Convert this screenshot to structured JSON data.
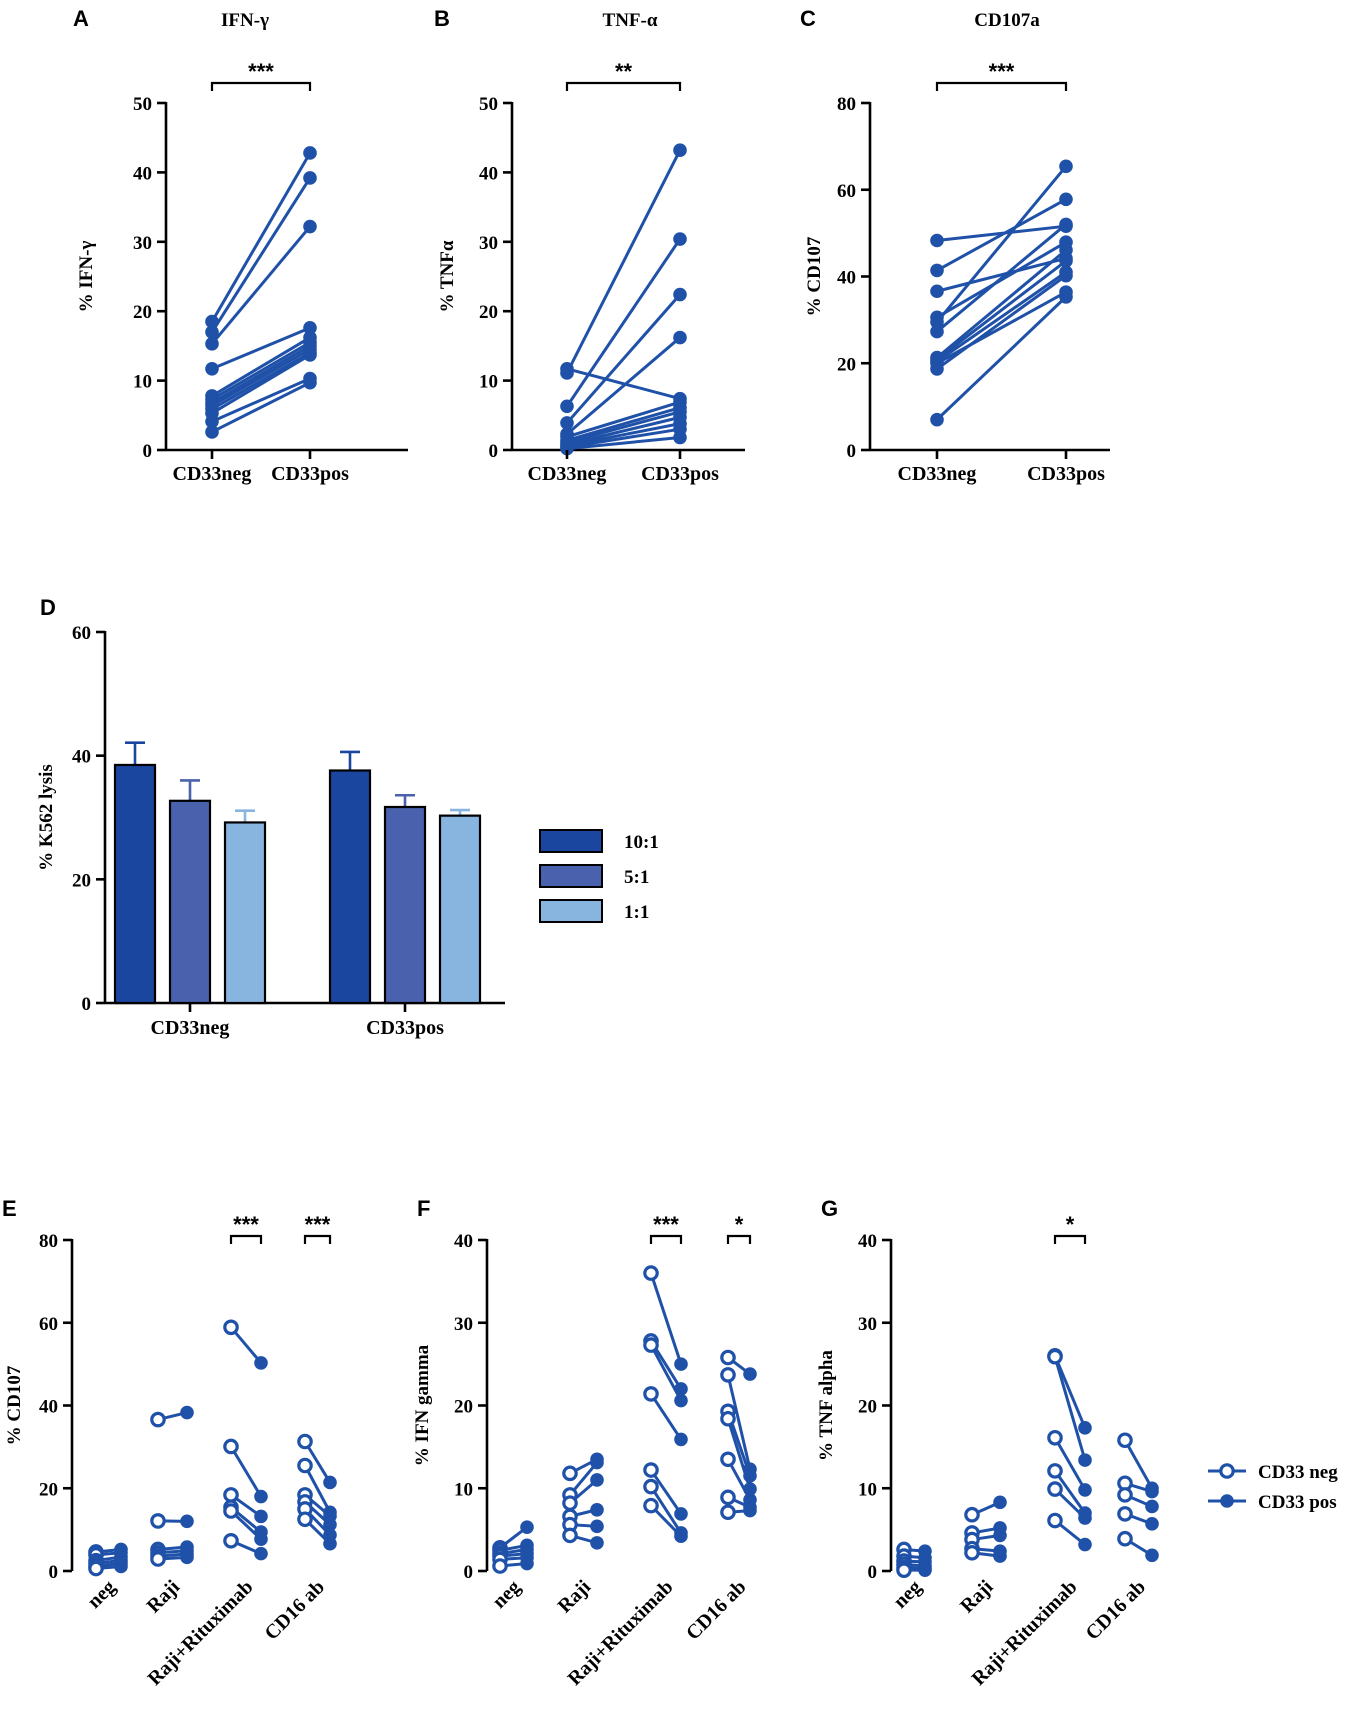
{
  "colors": {
    "series": "#1f51a8",
    "bar10": "#1a46a0",
    "bar5": "#4a62ad",
    "bar1": "#87b5e0",
    "axis": "#000000"
  },
  "chart_data": [
    {
      "id": "A",
      "letter": "A",
      "type": "line",
      "title": "IFN-γ",
      "ylabel": "% IFN-γ",
      "categories": [
        "CD33neg",
        "CD33pos"
      ],
      "ylim": [
        0,
        50
      ],
      "yticks": [
        0,
        10,
        20,
        30,
        40,
        50
      ],
      "pairs": [
        [
          18.5,
          42.8
        ],
        [
          17.0,
          39.2
        ],
        [
          15.3,
          32.2
        ],
        [
          11.7,
          17.6
        ],
        [
          7.8,
          16.2
        ],
        [
          7.3,
          15.5
        ],
        [
          6.8,
          15.0
        ],
        [
          6.4,
          14.5
        ],
        [
          5.9,
          14.0
        ],
        [
          5.3,
          13.7
        ],
        [
          4.1,
          10.3
        ],
        [
          2.6,
          9.7
        ]
      ],
      "significance": [
        {
          "from": 0,
          "to": 1,
          "label": "***"
        }
      ]
    },
    {
      "id": "B",
      "letter": "B",
      "type": "line",
      "title": "TNF-α",
      "ylabel": "% TNFα",
      "categories": [
        "CD33neg",
        "CD33pos"
      ],
      "ylim": [
        0,
        50
      ],
      "yticks": [
        0,
        10,
        20,
        30,
        40,
        50
      ],
      "pairs": [
        [
          11.7,
          7.4
        ],
        [
          11.1,
          43.2
        ],
        [
          6.3,
          30.4
        ],
        [
          3.9,
          22.4
        ],
        [
          2.3,
          16.2
        ],
        [
          1.9,
          6.9
        ],
        [
          1.4,
          6.1
        ],
        [
          1.1,
          5.5
        ],
        [
          0.8,
          4.7
        ],
        [
          0.6,
          3.8
        ],
        [
          0.4,
          3.0
        ],
        [
          0.2,
          1.8
        ]
      ],
      "significance": [
        {
          "from": 0,
          "to": 1,
          "label": "**"
        }
      ]
    },
    {
      "id": "C",
      "letter": "C",
      "type": "line",
      "title": "CD107a",
      "ylabel": "% CD107",
      "categories": [
        "CD33neg",
        "CD33pos"
      ],
      "ylim": [
        0,
        80
      ],
      "yticks": [
        0,
        20,
        40,
        60,
        80
      ],
      "pairs": [
        [
          48.3,
          51.6
        ],
        [
          41.4,
          57.8
        ],
        [
          36.6,
          44.2
        ],
        [
          30.6,
          47.9
        ],
        [
          29.5,
          65.4
        ],
        [
          27.3,
          52.0
        ],
        [
          21.3,
          46.1
        ],
        [
          20.9,
          43.6
        ],
        [
          20.4,
          41.0
        ],
        [
          18.7,
          40.2
        ],
        [
          7.0,
          35.3
        ],
        [
          20.0,
          36.4
        ]
      ],
      "significance": [
        {
          "from": 0,
          "to": 1,
          "label": "***"
        }
      ]
    },
    {
      "id": "D",
      "letter": "D",
      "type": "bar",
      "ylabel": "% K562 lysis",
      "categories": [
        "CD33neg",
        "CD33pos"
      ],
      "ylim": [
        0,
        60
      ],
      "yticks": [
        0,
        20,
        40,
        60
      ],
      "series": [
        {
          "name": "10:1",
          "colorKey": "bar10",
          "values": [
            38.5,
            37.6
          ],
          "errors": [
            3.6,
            3.0
          ]
        },
        {
          "name": "5:1",
          "colorKey": "bar5",
          "values": [
            32.7,
            31.7
          ],
          "errors": [
            3.3,
            1.9
          ]
        },
        {
          "name": "1:1",
          "colorKey": "bar1",
          "values": [
            29.2,
            30.3
          ],
          "errors": [
            1.9,
            0.9
          ]
        }
      ]
    },
    {
      "id": "E",
      "letter": "E",
      "type": "line",
      "ylabel": "% CD107",
      "categories": [
        "neg",
        "Raji",
        "Raji+Rituximab",
        "CD16 ab"
      ],
      "ylim": [
        0,
        80
      ],
      "yticks": [
        0,
        20,
        40,
        60,
        80
      ],
      "groups": [
        [
          [
            4.6,
            5.2
          ],
          [
            3.9,
            4.4
          ],
          [
            2.5,
            3.4
          ],
          [
            1.8,
            2.6
          ],
          [
            1.1,
            1.9
          ],
          [
            0.6,
            1.1
          ]
        ],
        [
          [
            36.6,
            38.3
          ],
          [
            12.1,
            12.0
          ],
          [
            5.2,
            5.8
          ],
          [
            4.4,
            4.9
          ],
          [
            3.6,
            4.1
          ],
          [
            2.9,
            3.3
          ]
        ],
        [
          [
            58.9,
            50.3
          ],
          [
            30.1,
            18.0
          ],
          [
            18.4,
            13.2
          ],
          [
            15.4,
            9.4
          ],
          [
            14.5,
            7.7
          ],
          [
            7.3,
            4.2
          ]
        ],
        [
          [
            31.3,
            21.4
          ],
          [
            25.5,
            14.2
          ],
          [
            18.4,
            13.3
          ],
          [
            16.7,
            11.2
          ],
          [
            15.0,
            8.7
          ],
          [
            12.5,
            6.6
          ]
        ]
      ],
      "significance": [
        {
          "from": 2,
          "to": 2,
          "label": "***"
        },
        {
          "from": 3,
          "to": 3,
          "label": "***"
        }
      ]
    },
    {
      "id": "F",
      "letter": "F",
      "type": "line",
      "ylabel": "% IFN gamma",
      "categories": [
        "neg",
        "Raji",
        "Raji+Rituximab",
        "CD16 ab"
      ],
      "ylim": [
        0,
        40
      ],
      "yticks": [
        0,
        10,
        20,
        30,
        40
      ],
      "groups": [
        [
          [
            2.8,
            5.3
          ],
          [
            2.5,
            3.1
          ],
          [
            2.1,
            2.6
          ],
          [
            1.8,
            2.1
          ],
          [
            1.4,
            1.6
          ],
          [
            0.6,
            0.9
          ]
        ],
        [
          [
            11.8,
            13.5
          ],
          [
            9.2,
            13.1
          ],
          [
            8.2,
            11.0
          ],
          [
            6.6,
            7.4
          ],
          [
            5.6,
            5.4
          ],
          [
            4.3,
            3.4
          ]
        ],
        [
          [
            36.0,
            25.0
          ],
          [
            27.8,
            22.0
          ],
          [
            27.3,
            20.6
          ],
          [
            21.4,
            15.9
          ],
          [
            12.2,
            6.9
          ],
          [
            10.2,
            4.6
          ],
          [
            7.9,
            4.2
          ]
        ],
        [
          [
            25.8,
            23.8
          ],
          [
            23.7,
            12.3
          ],
          [
            19.3,
            11.5
          ],
          [
            18.4,
            9.9
          ],
          [
            13.5,
            8.6
          ],
          [
            8.9,
            7.7
          ],
          [
            7.1,
            7.3
          ]
        ]
      ],
      "significance": [
        {
          "from": 2,
          "to": 2,
          "label": "***"
        },
        {
          "from": 3,
          "to": 3,
          "label": "*"
        }
      ]
    },
    {
      "id": "G",
      "letter": "G",
      "type": "line",
      "ylabel": "% TNF alpha",
      "categories": [
        "neg",
        "Raji",
        "Raji+Rituximab",
        "CD16 ab"
      ],
      "ylim": [
        0,
        40
      ],
      "yticks": [
        0,
        10,
        20,
        30,
        40
      ],
      "groups": [
        [
          [
            2.6,
            2.4
          ],
          [
            1.8,
            1.6
          ],
          [
            1.2,
            1.1
          ],
          [
            0.8,
            0.6
          ],
          [
            0.4,
            0.3
          ],
          [
            0.1,
            0.1
          ]
        ],
        [
          [
            6.8,
            8.3
          ],
          [
            4.6,
            5.2
          ],
          [
            3.8,
            4.3
          ],
          [
            2.7,
            2.4
          ],
          [
            2.2,
            1.8
          ]
        ],
        [
          [
            26.0,
            17.3
          ],
          [
            25.9,
            13.4
          ],
          [
            16.1,
            9.8
          ],
          [
            12.1,
            7.0
          ],
          [
            9.9,
            6.4
          ],
          [
            6.1,
            3.2
          ]
        ],
        [
          [
            15.8,
            10.0
          ],
          [
            10.6,
            9.6
          ],
          [
            9.2,
            7.8
          ],
          [
            6.9,
            5.7
          ],
          [
            3.9,
            1.9
          ]
        ]
      ],
      "significance": [
        {
          "from": 2,
          "to": 2,
          "label": "*"
        }
      ]
    }
  ],
  "legends": {
    "bars": [
      "10:1",
      "5:1",
      "1:1"
    ],
    "points": [
      {
        "name": "CD33 neg",
        "marker": "open-circle"
      },
      {
        "name": "CD33 pos",
        "marker": "filled-circle"
      }
    ]
  }
}
